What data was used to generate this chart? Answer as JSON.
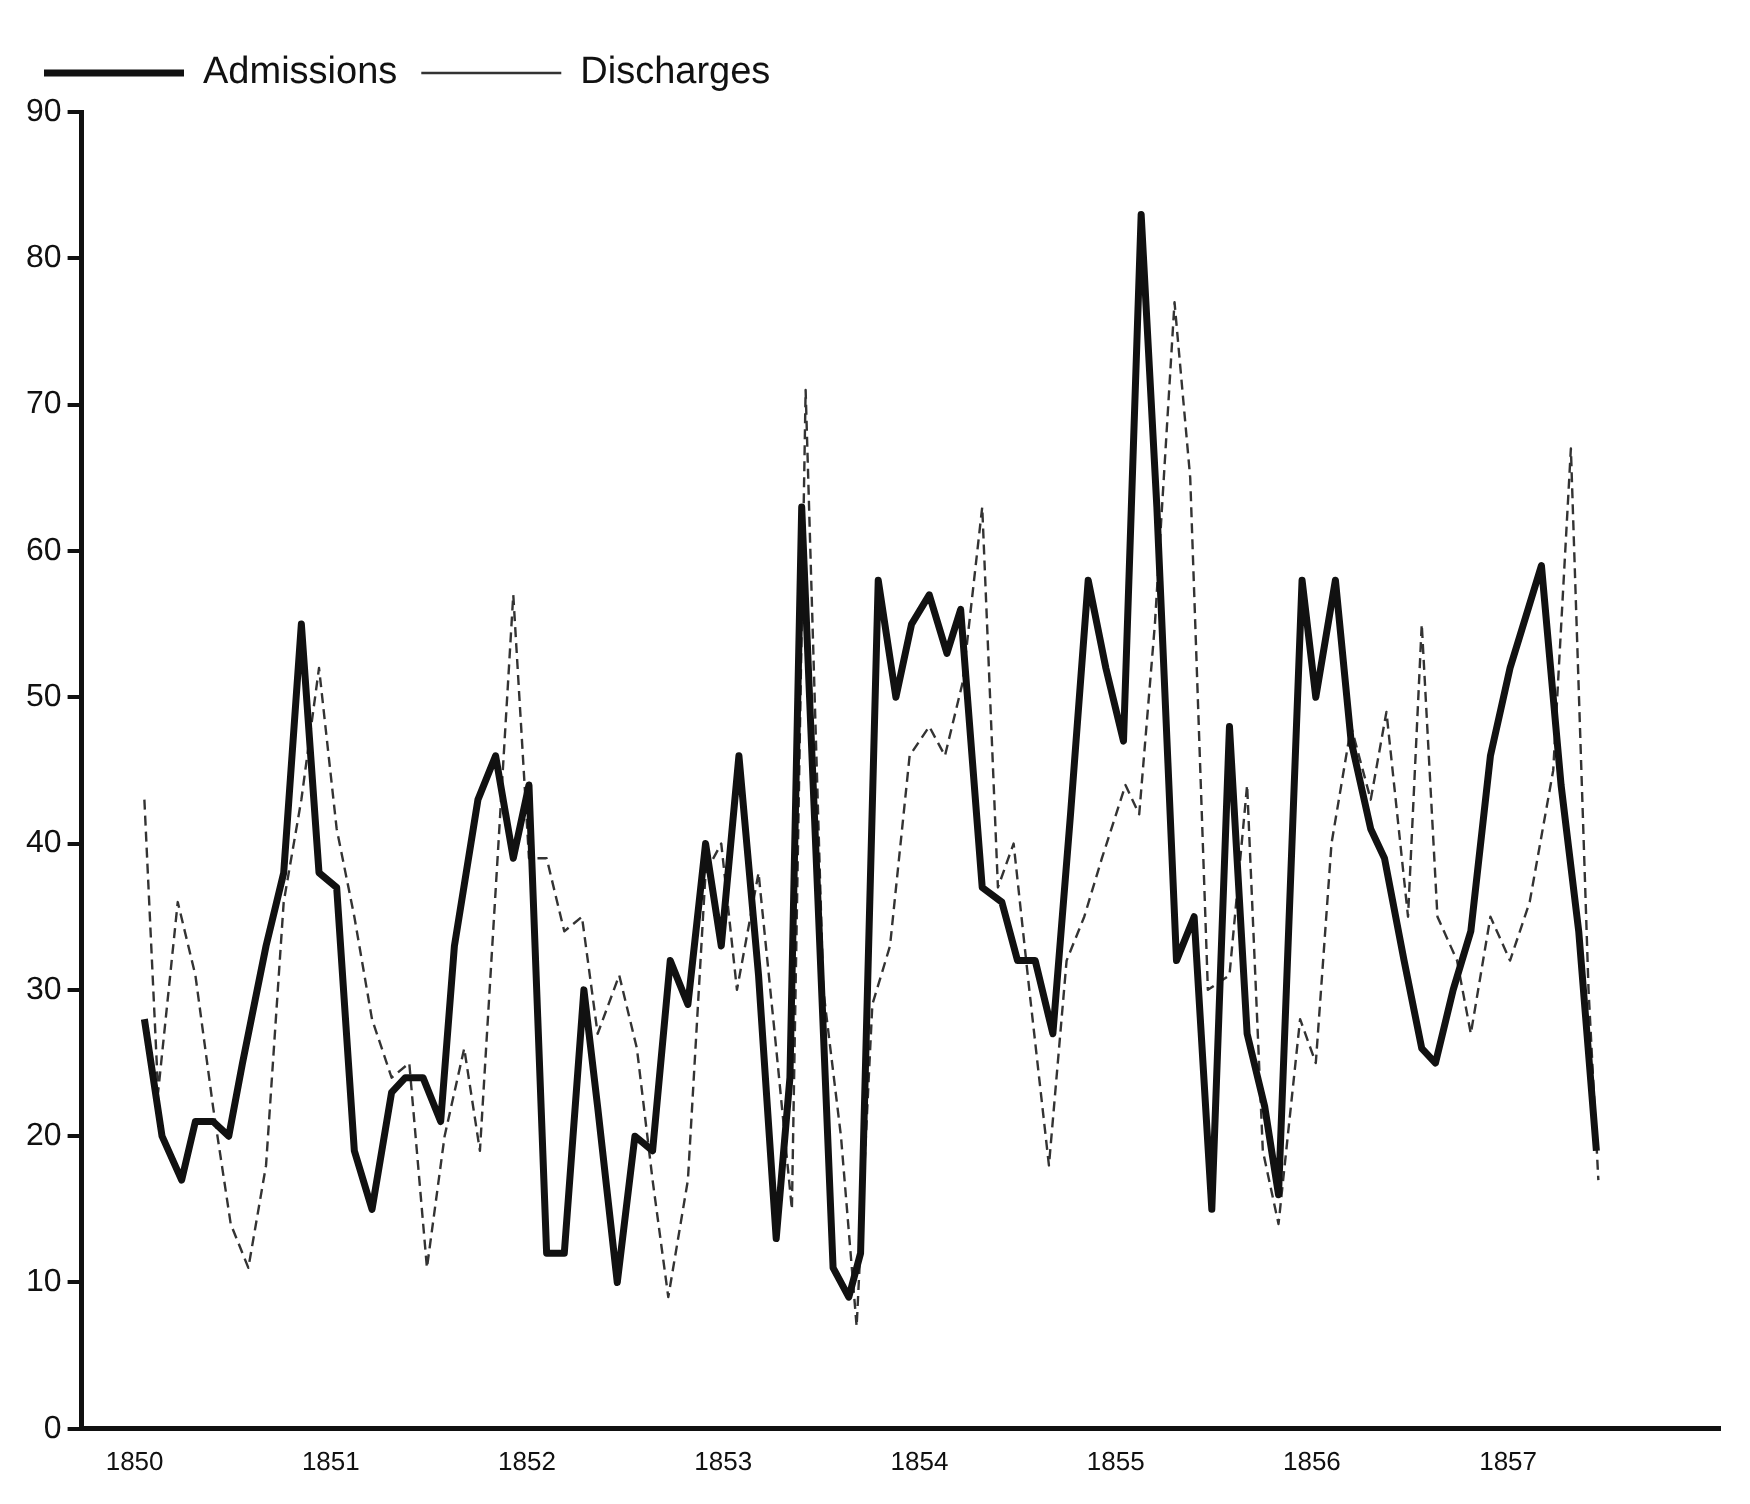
{
  "chart_data": {
    "type": "line",
    "legend": "top left",
    "grid": false,
    "marker": "none",
    "xlim": [
      1849.73,
      1858.08
    ],
    "xticks": [
      1850,
      1851,
      1852,
      1853,
      1854,
      1855,
      1856,
      1857
    ],
    "ylim": [
      0,
      90
    ],
    "yticks": [
      0,
      10,
      20,
      30,
      40,
      50,
      60,
      70,
      80,
      90
    ],
    "series": [
      {
        "name": "Admissions",
        "color": "#111111",
        "line_style": "solid",
        "x": [
          1850.05,
          1850.14,
          1850.24,
          1850.31,
          1850.4,
          1850.48,
          1850.55,
          1850.67,
          1850.76,
          1850.85,
          1850.94,
          1851.03,
          1851.12,
          1851.21,
          1851.31,
          1851.38,
          1851.47,
          1851.56,
          1851.63,
          1851.75,
          1851.84,
          1851.93,
          1852.01,
          1852.1,
          1852.19,
          1852.29,
          1852.36,
          1852.46,
          1852.55,
          1852.64,
          1852.73,
          1852.82,
          1852.91,
          1852.99,
          1853.08,
          1853.18,
          1853.27,
          1853.34,
          1853.4,
          1853.56,
          1853.64,
          1853.7,
          1853.79,
          1853.88,
          1853.96,
          1854.05,
          1854.14,
          1854.21,
          1854.32,
          1854.42,
          1854.5,
          1854.59,
          1854.68,
          1854.77,
          1854.86,
          1854.95,
          1855.04,
          1855.13,
          1855.21,
          1855.31,
          1855.4,
          1855.49,
          1855.58,
          1855.67,
          1855.76,
          1855.83,
          1855.95,
          1856.02,
          1856.12,
          1856.2,
          1856.3,
          1856.37,
          1856.47,
          1856.56,
          1856.63,
          1856.72,
          1856.81,
          1856.91,
          1857.01,
          1857.17,
          1857.27,
          1857.36,
          1857.45
        ],
        "values": [
          28,
          20,
          17,
          21,
          21,
          20,
          25,
          33,
          38,
          55,
          38,
          37,
          19,
          15,
          23,
          24,
          24,
          21,
          33,
          43,
          46,
          39,
          44,
          12,
          12,
          30,
          22,
          10,
          20,
          19,
          32,
          29,
          40,
          33,
          46,
          31,
          13,
          24,
          63,
          11,
          9,
          12,
          58,
          50,
          55,
          57,
          53,
          56,
          37,
          36,
          32,
          32,
          27,
          42,
          58,
          52,
          47,
          83,
          63,
          32,
          35,
          15,
          48,
          27,
          22,
          16,
          58,
          50,
          58,
          47,
          41,
          39,
          32,
          26,
          25,
          30,
          34,
          46,
          52,
          59,
          44,
          34,
          19
        ]
      },
      {
        "name": "Discharges",
        "color": "#333333",
        "line_style": "dashed",
        "x": [
          1850.05,
          1850.12,
          1850.22,
          1850.31,
          1850.4,
          1850.49,
          1850.58,
          1850.67,
          1850.76,
          1850.85,
          1850.94,
          1851.03,
          1851.12,
          1851.21,
          1851.31,
          1851.4,
          1851.49,
          1851.58,
          1851.68,
          1851.76,
          1851.85,
          1851.93,
          1852.01,
          1852.1,
          1852.19,
          1852.28,
          1852.36,
          1852.47,
          1852.56,
          1852.64,
          1852.72,
          1852.82,
          1852.91,
          1852.99,
          1853.07,
          1853.18,
          1853.27,
          1853.35,
          1853.42,
          1853.51,
          1853.6,
          1853.68,
          1853.76,
          1853.85,
          1853.95,
          1854.05,
          1854.13,
          1854.22,
          1854.32,
          1854.4,
          1854.48,
          1854.56,
          1854.66,
          1854.75,
          1854.84,
          1854.93,
          1855.05,
          1855.12,
          1855.2,
          1855.3,
          1855.38,
          1855.47,
          1855.58,
          1855.67,
          1855.75,
          1855.83,
          1855.94,
          1856.02,
          1856.1,
          1856.2,
          1856.3,
          1856.38,
          1856.49,
          1856.56,
          1856.64,
          1856.74,
          1856.81,
          1856.91,
          1857.01,
          1857.11,
          1857.23,
          1857.32,
          1857.41,
          1857.46
        ],
        "values": [
          43,
          23,
          36,
          31,
          22,
          14,
          11,
          18,
          36,
          43,
          52,
          41,
          35,
          28,
          24,
          25,
          11,
          20,
          26,
          19,
          39,
          57,
          39,
          39,
          34,
          35,
          27,
          31,
          26,
          17,
          9,
          17,
          38,
          40,
          30,
          38,
          26,
          15,
          71,
          30,
          20,
          7,
          29,
          33,
          46,
          48,
          46,
          51,
          63,
          37,
          40,
          30,
          18,
          32,
          35,
          39,
          44,
          42,
          55,
          77,
          65,
          30,
          31,
          44,
          19,
          14,
          28,
          25,
          40,
          48,
          43,
          49,
          35,
          55,
          35,
          32,
          27,
          35,
          32,
          36,
          45,
          67,
          30,
          17
        ]
      }
    ]
  }
}
